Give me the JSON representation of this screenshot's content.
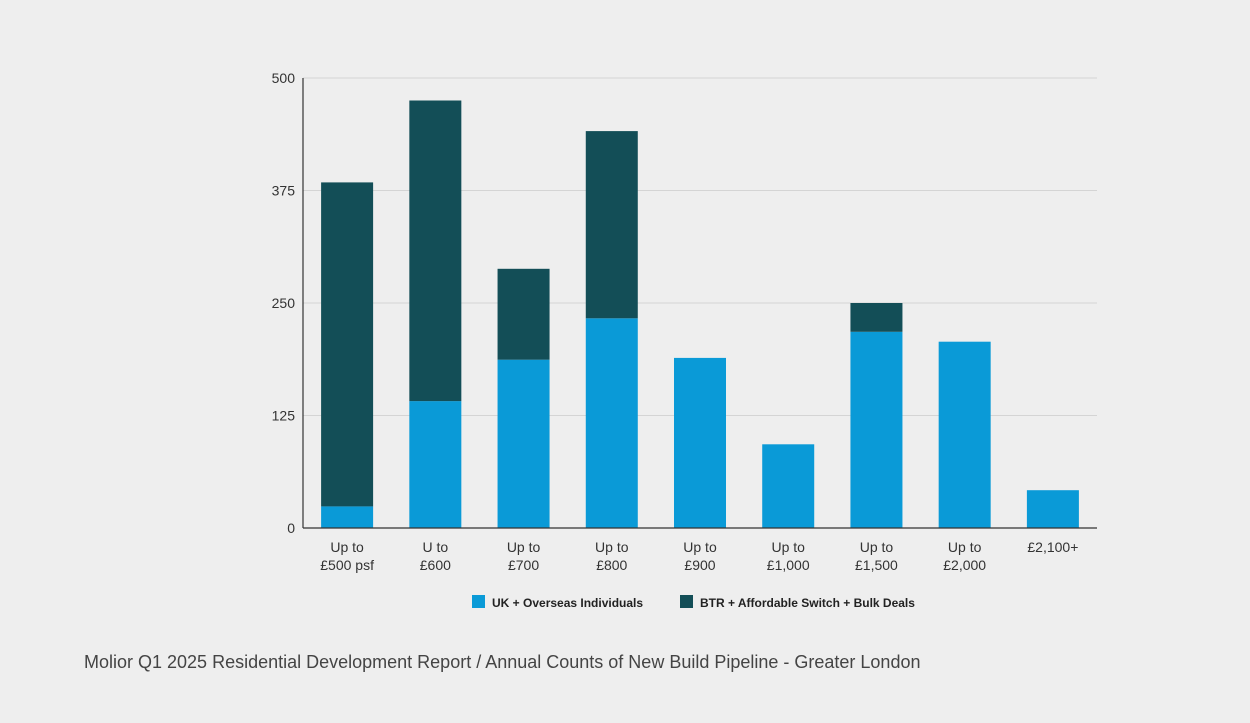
{
  "caption": "Molior Q1 2025 Residential Development Report / Annual Counts of New Build Pipeline - Greater London",
  "colors": {
    "background": "#eeeeee",
    "gridline": "#d4d4d4",
    "axis": "#333333"
  },
  "chart_data": {
    "type": "bar",
    "stacked": true,
    "title": "",
    "xlabel": "",
    "ylabel": "",
    "ylim": [
      0,
      500
    ],
    "yticks": [
      0,
      125,
      250,
      375,
      500
    ],
    "grid": true,
    "legend_position": "bottom-center",
    "categories": [
      [
        "Up to",
        "£500 psf"
      ],
      [
        "U to",
        "£600"
      ],
      [
        "Up to",
        "£700"
      ],
      [
        "Up to",
        "£800"
      ],
      [
        "Up to",
        "£900"
      ],
      [
        "Up to",
        "£1,000"
      ],
      [
        "Up to",
        "£1,500"
      ],
      [
        "Up to",
        "£2,000"
      ],
      [
        "£2,100+"
      ]
    ],
    "series": [
      {
        "name": "UK + Overseas Individuals",
        "color": "#0a9ad7",
        "values": [
          24,
          141,
          187,
          233,
          189,
          93,
          218,
          207,
          42
        ]
      },
      {
        "name": "BTR + Affordable Switch + Bulk Deals",
        "color": "#134e57",
        "values": [
          360,
          334,
          101,
          208,
          0,
          0,
          32,
          0,
          0
        ]
      }
    ]
  }
}
